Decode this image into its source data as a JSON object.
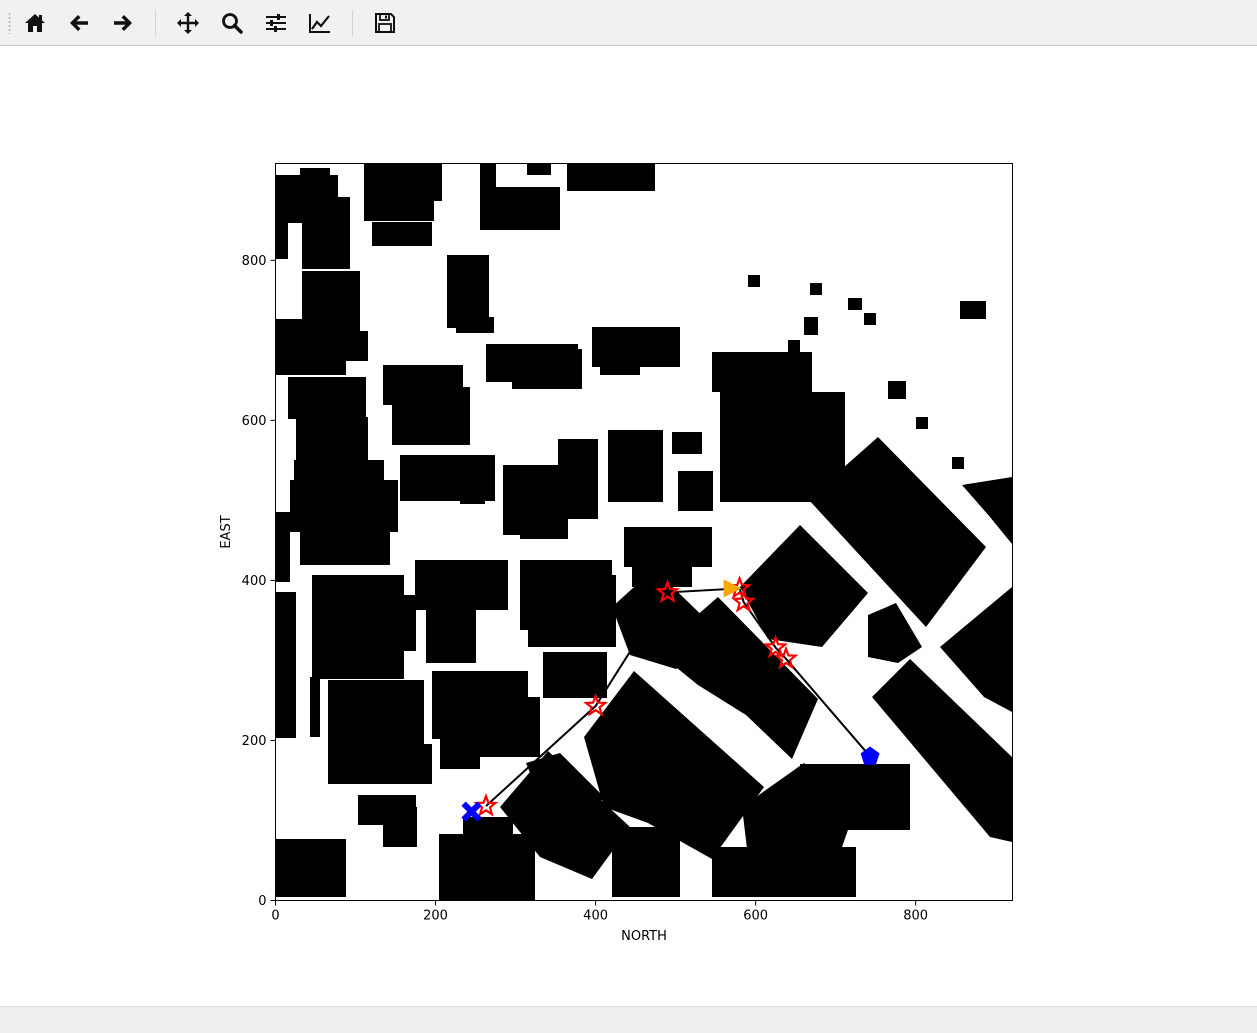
{
  "toolbar": {
    "buttons": [
      {
        "name": "home",
        "icon": "home-icon"
      },
      {
        "name": "back",
        "icon": "arrow-left-icon"
      },
      {
        "name": "forward",
        "icon": "arrow-right-icon"
      },
      {
        "name": "pan",
        "icon": "move-icon"
      },
      {
        "name": "zoom",
        "icon": "magnifier-icon"
      },
      {
        "name": "configure-subplots",
        "icon": "sliders-icon"
      },
      {
        "name": "edit-axis",
        "icon": "line-chart-icon"
      },
      {
        "name": "save",
        "icon": "floppy-disk-icon"
      }
    ]
  },
  "status": {
    "text": ""
  },
  "chart_data": {
    "type": "scatter",
    "title": "",
    "xlabel": "NORTH",
    "ylabel": "EAST",
    "xlim": [
      0,
      921
    ],
    "ylim": [
      0,
      921
    ],
    "xticks": [
      "0",
      "200",
      "400",
      "600",
      "800"
    ],
    "yticks": [
      "0",
      "200",
      "400",
      "600",
      "800"
    ],
    "grid": false,
    "background": "grid map of obstacles (black) on free space (white)",
    "path": [
      {
        "x": 263,
        "y": 118
      },
      {
        "x": 400,
        "y": 243
      },
      {
        "x": 490,
        "y": 385
      },
      {
        "x": 580,
        "y": 390
      },
      {
        "x": 585,
        "y": 373
      },
      {
        "x": 625,
        "y": 316
      },
      {
        "x": 638,
        "y": 302
      },
      {
        "x": 743,
        "y": 180
      }
    ],
    "waypoints": [
      {
        "x": 263,
        "y": 118
      },
      {
        "x": 400,
        "y": 243
      },
      {
        "x": 490,
        "y": 385
      },
      {
        "x": 580,
        "y": 390
      },
      {
        "x": 585,
        "y": 373
      },
      {
        "x": 625,
        "y": 316
      },
      {
        "x": 638,
        "y": 302
      }
    ],
    "start": {
      "x": 245,
      "y": 111
    },
    "goal": {
      "x": 743,
      "y": 180
    },
    "current": {
      "x": 570,
      "y": 390
    },
    "colors": {
      "obstacle": "#000000",
      "path": "#000000",
      "waypoint": "#ff0000",
      "start": "#0000ff",
      "goal": "#0000ff",
      "current": "#ffa500"
    }
  }
}
